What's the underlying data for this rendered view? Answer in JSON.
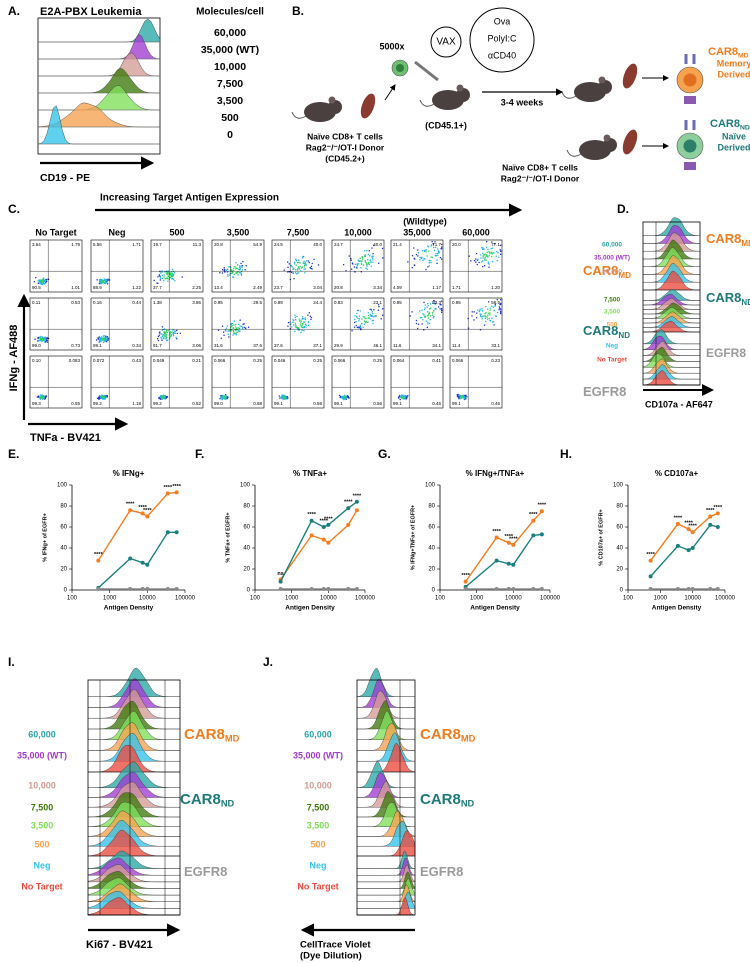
{
  "panel_a": {
    "letter": "A.",
    "title": "E2A-PBX Leukemia",
    "column_header": "Molecules/cell",
    "levels": [
      "60,000",
      "35,000 (WT)",
      "10,000",
      "7,500",
      "3,500",
      "500",
      "0"
    ],
    "x_label": "CD19 - PE"
  },
  "panel_b": {
    "letter": "B.",
    "cell_count": "5000x",
    "vax": "VAX",
    "adjuvants": [
      "Ova",
      "PolyI:C",
      "αCD40"
    ],
    "host": "(CD45.1+)",
    "interval": "3-4 weeks",
    "donor_memory": [
      "Naïve CD8+ T cells",
      "Rag2⁻/⁻/OT-I Donor",
      "(CD45.2+)"
    ],
    "donor_naive": [
      "Naïve CD8+ T cells",
      "Rag2⁻/⁻/OT-I Donor"
    ],
    "caption_md": [
      "Memory",
      "Derived"
    ],
    "caption_nd": [
      "Naïve",
      "Derived"
    ]
  },
  "groups": [
    {
      "name": "CAR8",
      "sub": "MD",
      "color": "#f07c1e"
    },
    {
      "name": "CAR8",
      "sub": "ND",
      "color": "#1d7a78"
    },
    {
      "name": "EGFR8",
      "color": "#9a9a9a"
    }
  ],
  "conditions": [
    {
      "label": "60,000",
      "color": "#2aa6a6"
    },
    {
      "label": "35,000 (WT)",
      "color": "#a23bd1"
    },
    {
      "label": "10,000",
      "color": "#d39b95"
    },
    {
      "label": "7,500",
      "color": "#3f7a0c"
    },
    {
      "label": "3,500",
      "color": "#7fe05a"
    },
    {
      "label": "500",
      "color": "#f6a24f"
    },
    {
      "label": "Neg",
      "color": "#33c3ea"
    },
    {
      "label": "No Target",
      "color": "#ea4a3f"
    }
  ],
  "panel_c": {
    "letter": "C.",
    "header": "Increasing Target Antigen Expression",
    "wildtype": "(Wildtype)",
    "columns": [
      "No Target",
      "Neg",
      "500",
      "3,500",
      "7,500",
      "10,000",
      "35,000",
      "60,000"
    ],
    "y_label": "IFNg - AF488",
    "x_label": "TNFa - BV421",
    "quadrants": [
      [
        [
          "3.64",
          "1.79",
          "90.5",
          "1.01"
        ],
        [
          "5.56",
          "1.71",
          "88.9",
          "1.22"
        ],
        [
          "19.7",
          "11.3",
          "37.7",
          "2.25"
        ],
        [
          "20.8",
          "54.9",
          "13.4",
          "2.49"
        ],
        [
          "24.5",
          "40.0",
          "23.7",
          "3.04"
        ],
        [
          "24.7",
          "40.0",
          "20.8",
          "3.34"
        ],
        [
          "21.4",
          "71.7",
          "4.09",
          "1.17"
        ],
        [
          "20.0",
          "77.1",
          "1.71",
          "1.20"
        ]
      ],
      [
        [
          "0.11",
          "0.53",
          "99.0",
          "0.73"
        ],
        [
          "0.16",
          "0.44",
          "99.1",
          "0.34"
        ],
        [
          "1.38",
          "3.86",
          "91.7",
          "3.06"
        ],
        [
          "0.95",
          "29.5",
          "31.6",
          "37.6"
        ],
        [
          "0.89",
          "24.4",
          "37.6",
          "37.1"
        ],
        [
          "0.83",
          "23.1",
          "29.9",
          "46.1"
        ],
        [
          "0.95",
          "53.3",
          "11.6",
          "34.1"
        ],
        [
          "0.95",
          "56.5",
          "11.4",
          "33.1"
        ]
      ],
      [
        [
          "0.10",
          "0.083",
          "99.3",
          "0.55"
        ],
        [
          "0.072",
          "0.43",
          "99.2",
          "1.18"
        ],
        [
          "0.049",
          "0.21",
          "99.2",
          "0.52"
        ],
        [
          "0.066",
          "0.25",
          "99.0",
          "0.68"
        ],
        [
          "0.046",
          "0.25",
          "99.1",
          "0.58"
        ],
        [
          "0.066",
          "0.25",
          "99.1",
          "0.56"
        ],
        [
          "0.064",
          "0.41",
          "99.1",
          "0.46"
        ],
        [
          "0.066",
          "0.23",
          "99.1",
          "0.46"
        ]
      ]
    ]
  },
  "panel_d": {
    "letter": "D.",
    "x_label": "CD107a - AF647"
  },
  "panel_i": {
    "letter": "I.",
    "x_label": "Ki67 - BV421"
  },
  "panel_j": {
    "letter": "J.",
    "x_label": [
      "CellTrace Violet",
      "(Dye Dilution)"
    ]
  },
  "chart_data": [
    {
      "type": "line",
      "panel": "E.",
      "title": "% IFNg+",
      "y_label": "% IFNg+ of EGFR+",
      "x_label": "Antigen Density",
      "x": [
        500,
        3500,
        7500,
        10000,
        35000,
        60000
      ],
      "xscale": "log",
      "xlim": [
        100,
        100000
      ],
      "xticks": [
        100,
        1000,
        10000,
        100000
      ],
      "ylim": [
        0,
        100
      ],
      "yticks": [
        0,
        20,
        40,
        60,
        80,
        100
      ],
      "series": [
        {
          "color": "#f57c1f",
          "values": [
            28,
            76,
            73,
            70,
            92,
            93
          ]
        },
        {
          "color": "#1a7f7f",
          "values": [
            2,
            30,
            26,
            24,
            55,
            55
          ]
        },
        {
          "color": "#8a8a8a",
          "values": [
            1,
            1,
            1,
            1,
            1,
            1
          ]
        }
      ],
      "significance": [
        "****",
        "****",
        "****",
        "****",
        "****",
        "****"
      ]
    },
    {
      "type": "line",
      "panel": "F.",
      "title": "% TNFa+",
      "y_label": "% TNFa+ of EGFR+",
      "x_label": "Antigen Density",
      "x": [
        500,
        3500,
        7500,
        10000,
        35000,
        60000
      ],
      "xscale": "log",
      "xlim": [
        100,
        100000
      ],
      "xticks": [
        100,
        1000,
        10000,
        100000
      ],
      "ylim": [
        0,
        100
      ],
      "yticks": [
        0,
        20,
        40,
        60,
        80,
        100
      ],
      "series": [
        {
          "color": "#f57c1f",
          "values": [
            10,
            52,
            48,
            45,
            62,
            76
          ]
        },
        {
          "color": "#1a7f7f",
          "values": [
            8,
            66,
            60,
            62,
            78,
            84
          ]
        },
        {
          "color": "#8a8a8a",
          "values": [
            1,
            1,
            1,
            1,
            1,
            1
          ]
        }
      ],
      "significance": [
        "ns",
        "****",
        "****",
        "****",
        "****",
        "****"
      ]
    },
    {
      "type": "line",
      "panel": "G.",
      "title": "% IFNg+/TNFa+",
      "y_label": "% IFNg+TNFa+ of EGFR+",
      "x_label": "Antigen Density",
      "x": [
        500,
        3500,
        7500,
        10000,
        35000,
        60000
      ],
      "xscale": "log",
      "xlim": [
        100,
        100000
      ],
      "xticks": [
        100,
        1000,
        10000,
        100000
      ],
      "ylim": [
        0,
        100
      ],
      "yticks": [
        0,
        20,
        40,
        60,
        80,
        100
      ],
      "series": [
        {
          "color": "#f57c1f",
          "values": [
            8,
            50,
            45,
            43,
            66,
            75
          ]
        },
        {
          "color": "#1a7f7f",
          "values": [
            3,
            28,
            25,
            24,
            52,
            53
          ]
        },
        {
          "color": "#8a8a8a",
          "values": [
            1,
            1,
            1,
            1,
            1,
            1
          ]
        }
      ],
      "significance": [
        "****",
        "****",
        "****",
        "****",
        "****",
        "****"
      ]
    },
    {
      "type": "line",
      "panel": "H.",
      "title": "% CD107a+",
      "y_label": "% CD107a+ of EGFR+",
      "x_label": "Antigen Density",
      "x": [
        500,
        3500,
        7500,
        10000,
        35000,
        60000
      ],
      "xscale": "log",
      "xlim": [
        100,
        100000
      ],
      "xticks": [
        100,
        1000,
        10000,
        100000
      ],
      "ylim": [
        0,
        100
      ],
      "yticks": [
        0,
        20,
        40,
        60,
        80,
        100
      ],
      "series": [
        {
          "color": "#f57c1f",
          "values": [
            28,
            63,
            58,
            55,
            70,
            73
          ]
        },
        {
          "color": "#1a7f7f",
          "values": [
            13,
            42,
            38,
            40,
            62,
            60
          ]
        },
        {
          "color": "#8a8a8a",
          "values": [
            1,
            1,
            1,
            1,
            1,
            1
          ]
        }
      ],
      "significance": [
        "****",
        "****",
        "****",
        "****",
        "****",
        "****"
      ]
    }
  ]
}
